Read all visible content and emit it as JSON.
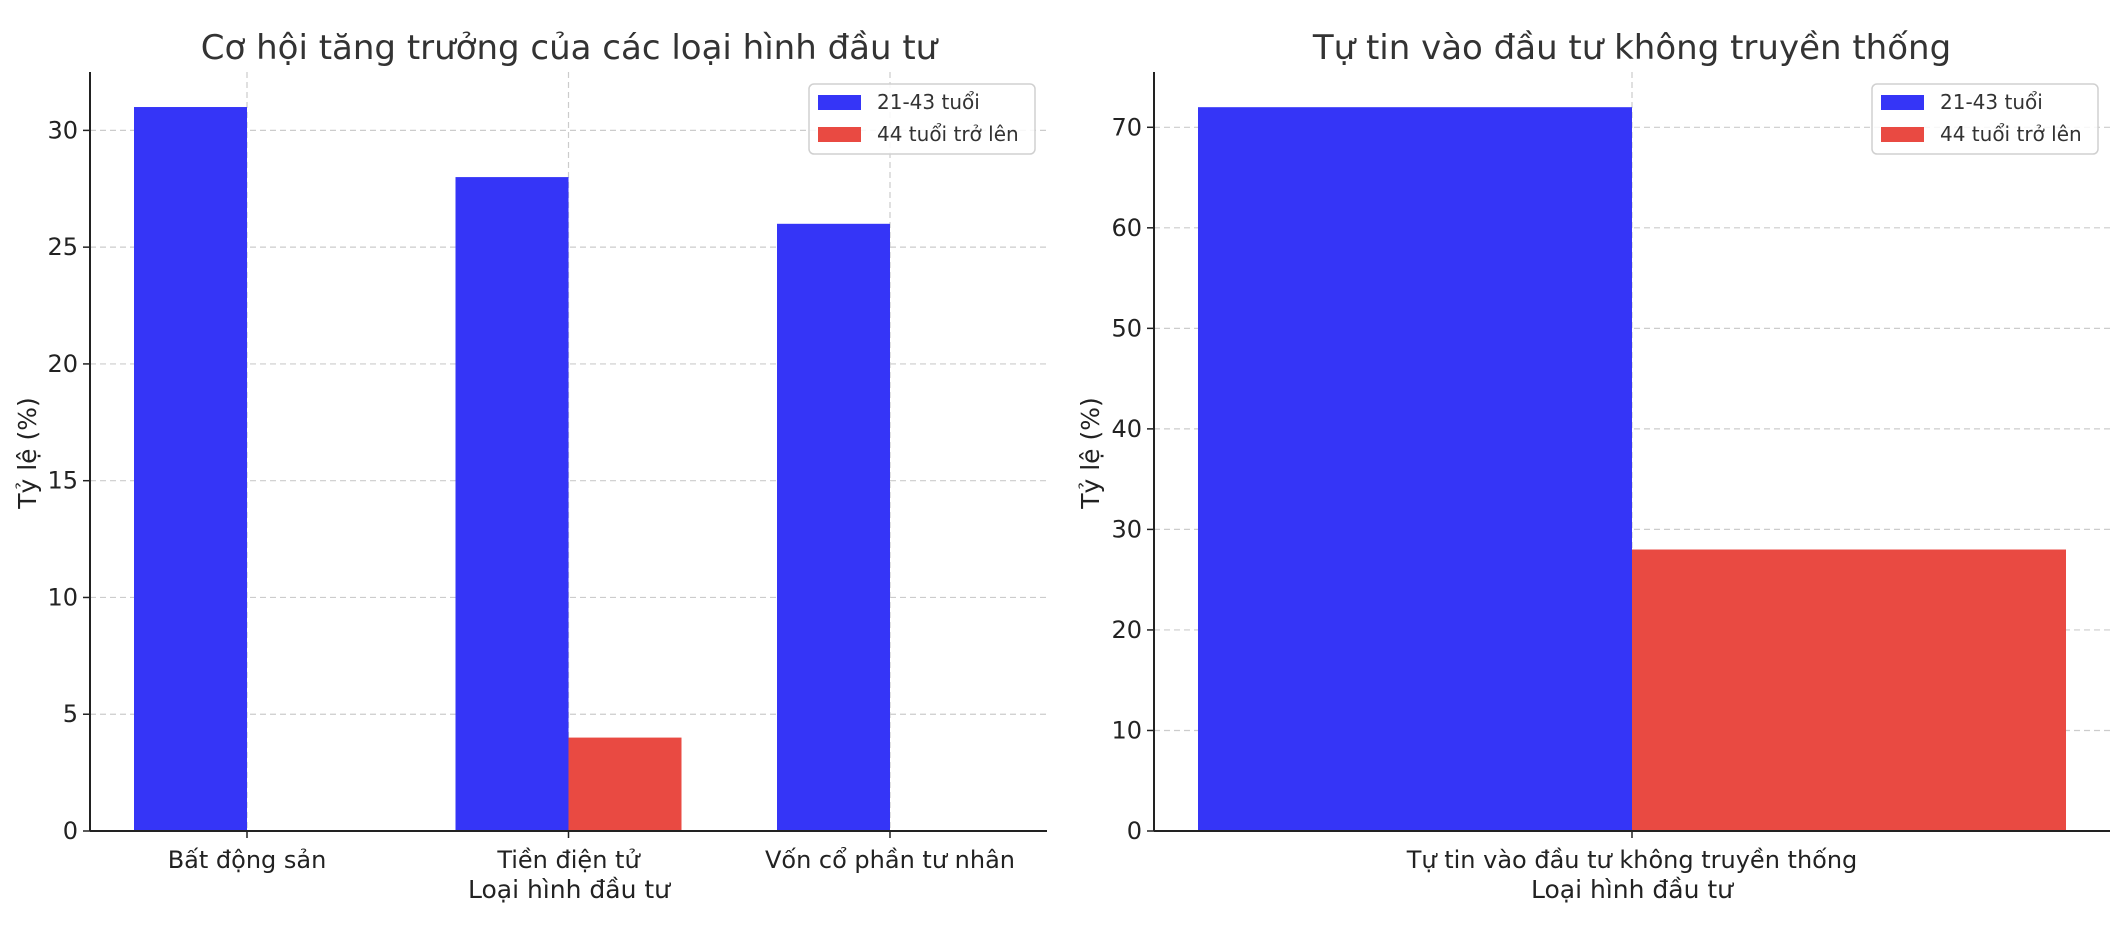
{
  "colors": {
    "young": "#3535f7",
    "old": "#e94a42"
  },
  "chart_data": [
    {
      "type": "bar",
      "title": "Cơ hội tăng trưởng của các loại hình đầu tư",
      "xlabel": "Loại hình đầu tư",
      "ylabel": "Tỷ lệ (%)",
      "categories": [
        "Bất động sản",
        "Tiền điện tử",
        "Vốn cổ phần tư nhân"
      ],
      "series": [
        {
          "name": "21-43 tuổi",
          "color": "#3535f7",
          "values": [
            31,
            28,
            26
          ]
        },
        {
          "name": "44 tuổi trở lên",
          "color": "#e94a42",
          "values": [
            0,
            4,
            0
          ]
        }
      ],
      "ylim": [
        0,
        32.5
      ],
      "yticks": [
        0,
        5,
        10,
        15,
        20,
        25,
        30
      ],
      "grid": true,
      "legend": "top-right"
    },
    {
      "type": "bar",
      "title": "Tự tin vào đầu tư không truyền thống",
      "xlabel": "Loại hình đầu tư",
      "ylabel": "Tỷ lệ (%)",
      "categories": [
        "Tự tin vào đầu tư không truyền thống"
      ],
      "series": [
        {
          "name": "21-43 tuổi",
          "color": "#3535f7",
          "values": [
            72
          ]
        },
        {
          "name": "44 tuổi trở lên",
          "color": "#e94a42",
          "values": [
            28
          ]
        }
      ],
      "ylim": [
        0,
        75.5
      ],
      "yticks": [
        0,
        10,
        20,
        30,
        40,
        50,
        60,
        70
      ],
      "grid": true,
      "legend": "top-right"
    }
  ]
}
